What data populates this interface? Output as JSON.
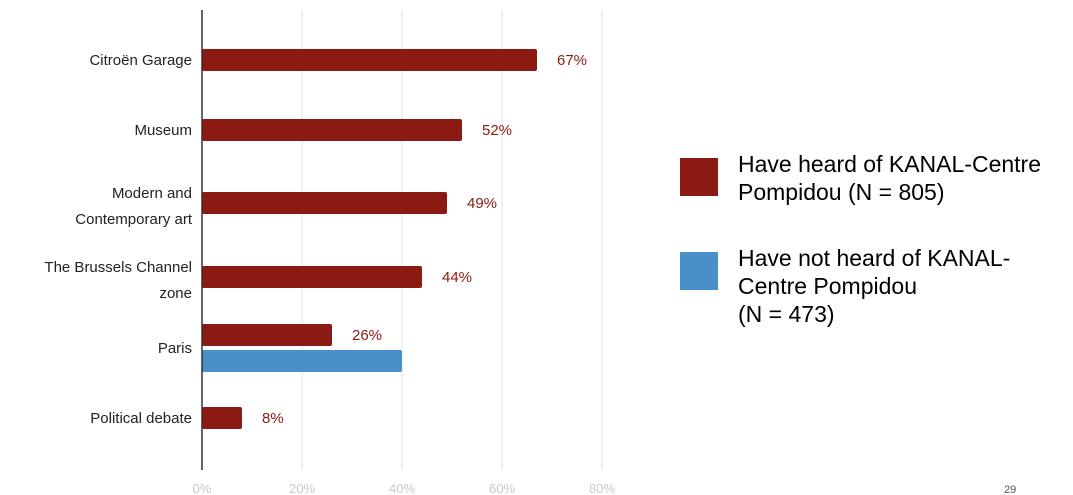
{
  "chart_data": {
    "type": "bar",
    "orientation": "horizontal",
    "categories": [
      "Citroën Garage",
      "Museum",
      "Modern and\nContemporary art",
      "The Brussels Channel\nzone",
      "Paris",
      "Political debate"
    ],
    "series": [
      {
        "name": "Have heard of KANAL-Centre Pompidou (N = 805)",
        "legend_lines": "Have heard of KANAL-Centre\nPompidou (N = 805)",
        "color": "#8b1a12",
        "values": [
          67,
          52,
          49,
          44,
          26,
          8
        ],
        "labels": [
          "67%",
          "52%",
          "49%",
          "44%",
          "26%",
          "8%"
        ]
      },
      {
        "name": "Have not heard of KANAL-Centre Pompidou (N = 473)",
        "legend_lines": "Have not heard of KANAL-\nCentre Pompidou\n(N = 473)",
        "color": "#4a90c8",
        "values": [
          null,
          null,
          null,
          null,
          40,
          null
        ],
        "labels": [
          "",
          "",
          "",
          "",
          "",
          ""
        ]
      }
    ],
    "xlim": [
      0,
      80
    ],
    "xticks": [
      0,
      20,
      40,
      60,
      80
    ],
    "xtick_labels": [
      "0%",
      "20%",
      "40%",
      "60%",
      "80%"
    ],
    "grid": true,
    "legend_position": "right",
    "title": "",
    "xlabel": "",
    "ylabel": ""
  },
  "page_number": "29"
}
